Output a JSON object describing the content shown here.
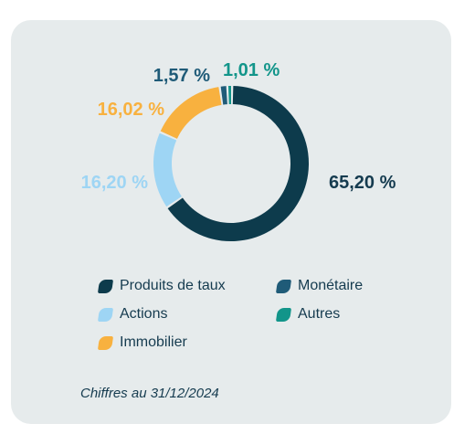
{
  "chart_data": {
    "type": "pie",
    "style": "donut",
    "categories": [
      "Produits de taux",
      "Actions",
      "Immobilier",
      "Monétaire",
      "Autres"
    ],
    "values": [
      65.2,
      16.2,
      16.02,
      1.57,
      1.01
    ],
    "value_labels": [
      "65,20 %",
      "16,20 %",
      "16,02 %",
      "1,57 %",
      "1,01 %"
    ],
    "colors": [
      "#0d3b4c",
      "#9ed5f4",
      "#f8b13f",
      "#1f5b78",
      "#12958a"
    ],
    "legend_placement": "bottom"
  },
  "legend": {
    "items": [
      {
        "label": "Produits de taux",
        "color": "#0d3b4c"
      },
      {
        "label": "Monétaire",
        "color": "#1f5b78"
      },
      {
        "label": "Actions",
        "color": "#9ed5f4"
      },
      {
        "label": "Autres",
        "color": "#12958a"
      },
      {
        "label": "Immobilier",
        "color": "#f8b13f"
      }
    ]
  },
  "footnote": "Chiffres au 31/12/2024"
}
